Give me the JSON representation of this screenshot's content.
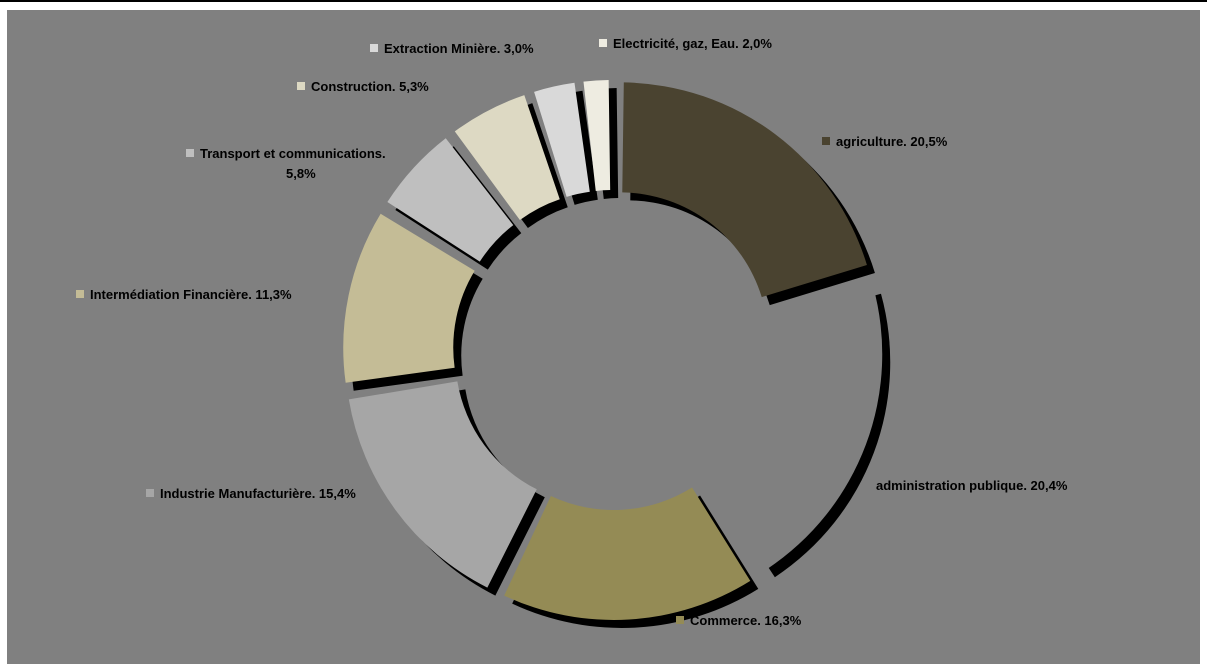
{
  "chart_data": {
    "type": "pie",
    "variant": "exploded-donut",
    "title": "",
    "legend": "data-labels",
    "slices": [
      {
        "name": "agriculture",
        "value": 20.5,
        "label": "agriculture. 20,5%",
        "color": "#4a4330"
      },
      {
        "name": "administration publique",
        "value": 20.4,
        "label": "administration publique. 20,4%",
        "color": "#808080"
      },
      {
        "name": "Commerce",
        "value": 16.3,
        "label": "Commerce. 16,3%",
        "color": "#948b55"
      },
      {
        "name": "Industrie Manufacturière",
        "value": 15.4,
        "label": "Industrie Manufacturière. 15,4%",
        "color": "#a6a6a6"
      },
      {
        "name": "Intermédiation Financière",
        "value": 11.3,
        "label": "Intermédiation Financière. 11,3%",
        "color": "#c4bc96"
      },
      {
        "name": "Transport et communications",
        "value": 5.8,
        "label": "Transport et communications. 5,8%",
        "label_lines": [
          "Transport et communications.",
          "5,8%"
        ],
        "color": "#bfbfbf"
      },
      {
        "name": "Construction",
        "value": 5.3,
        "label": "Construction. 5,3%",
        "color": "#ddd9c3"
      },
      {
        "name": "Extraction Minière",
        "value": 3.0,
        "label": "Extraction Minière. 3,0%",
        "color": "#d9d9d9"
      },
      {
        "name": "Electricité, gaz, Eau",
        "value": 2.0,
        "label": "Electricité, gaz, Eau. 2,0%",
        "color": "#eeece1"
      }
    ]
  }
}
